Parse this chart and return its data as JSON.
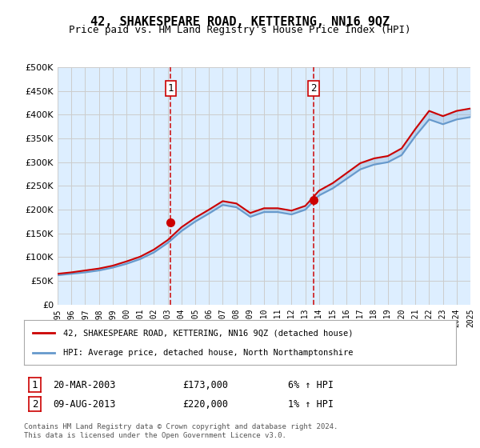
{
  "title": "42, SHAKESPEARE ROAD, KETTERING, NN16 9QZ",
  "subtitle": "Price paid vs. HM Land Registry's House Price Index (HPI)",
  "legend_line1": "42, SHAKESPEARE ROAD, KETTERING, NN16 9QZ (detached house)",
  "legend_line2": "HPI: Average price, detached house, North Northamptonshire",
  "footnote": "Contains HM Land Registry data © Crown copyright and database right 2024.\nThis data is licensed under the Open Government Licence v3.0.",
  "transaction1_label": "1",
  "transaction1_date": "20-MAR-2003",
  "transaction1_price": "£173,000",
  "transaction1_hpi": "6% ↑ HPI",
  "transaction1_year": 2003.22,
  "transaction1_value": 173000,
  "transaction2_label": "2",
  "transaction2_date": "09-AUG-2013",
  "transaction2_price": "£220,000",
  "transaction2_hpi": "1% ↑ HPI",
  "transaction2_year": 2013.61,
  "transaction2_value": 220000,
  "hpi_color": "#6699cc",
  "price_color": "#cc0000",
  "marker_color": "#cc0000",
  "dashed_line_color": "#cc0000",
  "background_color": "#ddeeff",
  "plot_bg_color": "#ddeeff",
  "ylabel_prefix": "£",
  "yticks": [
    0,
    50000,
    100000,
    150000,
    200000,
    250000,
    300000,
    350000,
    400000,
    450000,
    500000
  ],
  "ytick_labels": [
    "£0",
    "£50K",
    "£100K",
    "£150K",
    "£200K",
    "£250K",
    "£300K",
    "£350K",
    "£400K",
    "£450K",
    "£500K"
  ],
  "years": [
    1995,
    1996,
    1997,
    1998,
    1999,
    2000,
    2001,
    2002,
    2003,
    2004,
    2005,
    2006,
    2007,
    2008,
    2009,
    2010,
    2011,
    2012,
    2013,
    2014,
    2015,
    2016,
    2017,
    2018,
    2019,
    2020,
    2021,
    2022,
    2023,
    2024,
    2025
  ],
  "hpi_values": [
    62000,
    65000,
    68000,
    72000,
    78000,
    86000,
    96000,
    110000,
    130000,
    155000,
    175000,
    192000,
    210000,
    205000,
    185000,
    195000,
    195000,
    190000,
    200000,
    230000,
    245000,
    265000,
    285000,
    295000,
    300000,
    315000,
    355000,
    390000,
    380000,
    390000,
    395000
  ],
  "price_values": [
    65000,
    68000,
    72000,
    76000,
    82000,
    91000,
    101000,
    116000,
    136000,
    163000,
    183000,
    200000,
    218000,
    213000,
    193000,
    203000,
    203000,
    198000,
    208000,
    240000,
    256000,
    277000,
    298000,
    308000,
    313000,
    329000,
    370000,
    408000,
    397000,
    408000,
    413000
  ]
}
